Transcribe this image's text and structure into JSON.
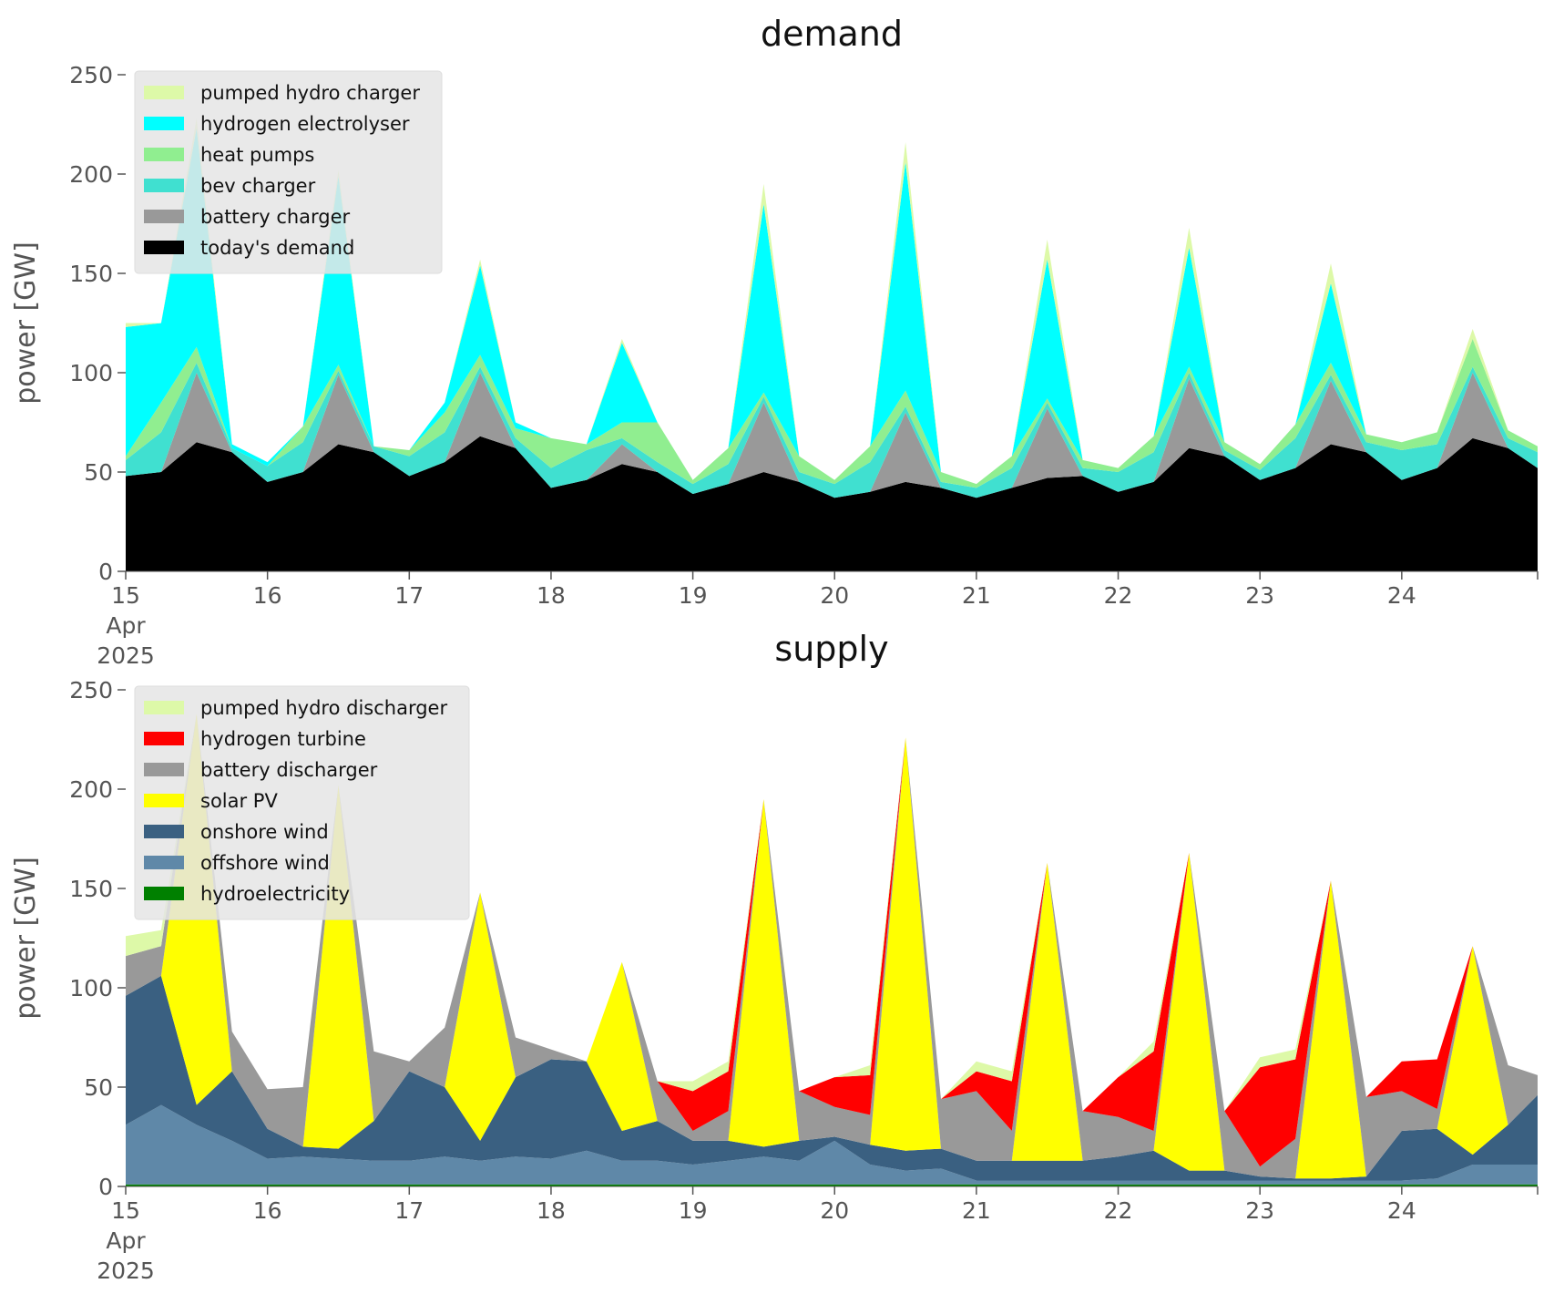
{
  "chart_data": [
    {
      "type": "area",
      "stacked": true,
      "title": "demand",
      "ylabel": "power [GW]",
      "ylim": [
        0,
        250
      ],
      "yticks": [
        0,
        50,
        100,
        150,
        200,
        250
      ],
      "xlim": [
        "2025-04-15",
        "2025-04-24T23:00"
      ],
      "xticks": [
        {
          "date": "2025-04-15",
          "lines": [
            "15",
            "Apr",
            "2025"
          ]
        },
        {
          "date": "2025-04-16",
          "lines": [
            "16"
          ]
        },
        {
          "date": "2025-04-17",
          "lines": [
            "17"
          ]
        },
        {
          "date": "2025-04-18",
          "lines": [
            "18"
          ]
        },
        {
          "date": "2025-04-19",
          "lines": [
            "19"
          ]
        },
        {
          "date": "2025-04-20",
          "lines": [
            "20"
          ]
        },
        {
          "date": "2025-04-21",
          "lines": [
            "21"
          ]
        },
        {
          "date": "2025-04-22",
          "lines": [
            "22"
          ]
        },
        {
          "date": "2025-04-23",
          "lines": [
            "23"
          ]
        },
        {
          "date": "2025-04-24",
          "lines": [
            "24"
          ]
        }
      ],
      "legend_position": "upper-left",
      "x": [
        "2025-04-15T00:00",
        "2025-04-15T06:00",
        "2025-04-15T12:00",
        "2025-04-15T18:00",
        "2025-04-16T00:00",
        "2025-04-16T06:00",
        "2025-04-16T12:00",
        "2025-04-16T18:00",
        "2025-04-17T00:00",
        "2025-04-17T06:00",
        "2025-04-17T12:00",
        "2025-04-17T18:00",
        "2025-04-18T00:00",
        "2025-04-18T06:00",
        "2025-04-18T12:00",
        "2025-04-18T18:00",
        "2025-04-19T00:00",
        "2025-04-19T06:00",
        "2025-04-19T12:00",
        "2025-04-19T18:00",
        "2025-04-20T00:00",
        "2025-04-20T06:00",
        "2025-04-20T12:00",
        "2025-04-20T18:00",
        "2025-04-21T00:00",
        "2025-04-21T06:00",
        "2025-04-21T12:00",
        "2025-04-21T18:00",
        "2025-04-22T00:00",
        "2025-04-22T06:00",
        "2025-04-22T12:00",
        "2025-04-22T18:00",
        "2025-04-23T00:00",
        "2025-04-23T06:00",
        "2025-04-23T12:00",
        "2025-04-23T18:00",
        "2025-04-24T00:00",
        "2025-04-24T06:00",
        "2025-04-24T12:00",
        "2025-04-24T18:00",
        "2025-04-24T23:00"
      ],
      "series": [
        {
          "name": "today's demand",
          "color": "#000000",
          "values": [
            48,
            50,
            65,
            60,
            45,
            50,
            64,
            60,
            48,
            55,
            68,
            62,
            42,
            46,
            54,
            50,
            39,
            44,
            50,
            45,
            37,
            40,
            45,
            42,
            37,
            42,
            47,
            48,
            40,
            45,
            62,
            58,
            46,
            52,
            64,
            60,
            46,
            52,
            67,
            62,
            52
          ]
        },
        {
          "name": "battery charger",
          "color": "#999999",
          "values": [
            0,
            0,
            35,
            0,
            0,
            0,
            35,
            0,
            0,
            0,
            32,
            0,
            0,
            0,
            10,
            0,
            0,
            0,
            35,
            0,
            0,
            0,
            35,
            0,
            0,
            0,
            35,
            0,
            0,
            0,
            35,
            0,
            0,
            0,
            32,
            0,
            0,
            0,
            33,
            0,
            0
          ]
        },
        {
          "name": "bev charger",
          "color": "#40E0D0",
          "values": [
            8,
            20,
            5,
            2,
            8,
            15,
            2,
            3,
            10,
            15,
            3,
            5,
            10,
            15,
            3,
            5,
            5,
            10,
            3,
            5,
            7,
            15,
            3,
            3,
            5,
            10,
            3,
            4,
            10,
            15,
            3,
            3,
            5,
            15,
            3,
            5,
            15,
            12,
            3,
            5,
            8
          ]
        },
        {
          "name": "heat pumps",
          "color": "#90EE90",
          "values": [
            2,
            15,
            8,
            0,
            0,
            8,
            3,
            0,
            3,
            10,
            6,
            5,
            15,
            3,
            8,
            20,
            2,
            8,
            2,
            8,
            2,
            8,
            8,
            5,
            2,
            6,
            2,
            4,
            2,
            8,
            3,
            4,
            3,
            7,
            6,
            4,
            4,
            6,
            14,
            4,
            3
          ]
        },
        {
          "name": "hydrogen electrolyser",
          "color": "#00FFFF",
          "values": [
            65,
            40,
            110,
            2,
            2,
            0,
            95,
            0,
            0,
            5,
            45,
            3,
            0,
            0,
            40,
            0,
            0,
            0,
            95,
            0,
            0,
            0,
            115,
            0,
            0,
            0,
            70,
            0,
            0,
            0,
            60,
            0,
            0,
            0,
            40,
            0,
            0,
            0,
            0,
            0,
            0
          ]
        },
        {
          "name": "pumped hydro charger",
          "color": "#DDF9A8",
          "values": [
            2,
            0,
            5,
            0,
            0,
            0,
            3,
            0,
            0,
            0,
            3,
            0,
            0,
            0,
            2,
            0,
            0,
            0,
            10,
            0,
            0,
            0,
            10,
            0,
            0,
            0,
            10,
            0,
            0,
            0,
            10,
            0,
            0,
            0,
            10,
            0,
            0,
            0,
            5,
            0,
            0
          ]
        }
      ]
    },
    {
      "type": "area",
      "stacked": true,
      "title": "supply",
      "ylabel": "power [GW]",
      "ylim": [
        0,
        250
      ],
      "yticks": [
        0,
        50,
        100,
        150,
        200,
        250
      ],
      "xlim": [
        "2025-04-15",
        "2025-04-24T23:00"
      ],
      "xticks": [
        {
          "date": "2025-04-15",
          "lines": [
            "15",
            "Apr",
            "2025"
          ]
        },
        {
          "date": "2025-04-16",
          "lines": [
            "16"
          ]
        },
        {
          "date": "2025-04-17",
          "lines": [
            "17"
          ]
        },
        {
          "date": "2025-04-18",
          "lines": [
            "18"
          ]
        },
        {
          "date": "2025-04-19",
          "lines": [
            "19"
          ]
        },
        {
          "date": "2025-04-20",
          "lines": [
            "20"
          ]
        },
        {
          "date": "2025-04-21",
          "lines": [
            "21"
          ]
        },
        {
          "date": "2025-04-22",
          "lines": [
            "22"
          ]
        },
        {
          "date": "2025-04-23",
          "lines": [
            "23"
          ]
        },
        {
          "date": "2025-04-24",
          "lines": [
            "24"
          ]
        }
      ],
      "legend_position": "upper-left",
      "x": [
        "2025-04-15T00:00",
        "2025-04-15T06:00",
        "2025-04-15T12:00",
        "2025-04-15T18:00",
        "2025-04-16T00:00",
        "2025-04-16T06:00",
        "2025-04-16T12:00",
        "2025-04-16T18:00",
        "2025-04-17T00:00",
        "2025-04-17T06:00",
        "2025-04-17T12:00",
        "2025-04-17T18:00",
        "2025-04-18T00:00",
        "2025-04-18T06:00",
        "2025-04-18T12:00",
        "2025-04-18T18:00",
        "2025-04-19T00:00",
        "2025-04-19T06:00",
        "2025-04-19T12:00",
        "2025-04-19T18:00",
        "2025-04-20T00:00",
        "2025-04-20T06:00",
        "2025-04-20T12:00",
        "2025-04-20T18:00",
        "2025-04-21T00:00",
        "2025-04-21T06:00",
        "2025-04-21T12:00",
        "2025-04-21T18:00",
        "2025-04-22T00:00",
        "2025-04-22T06:00",
        "2025-04-22T12:00",
        "2025-04-22T18:00",
        "2025-04-23T00:00",
        "2025-04-23T06:00",
        "2025-04-23T12:00",
        "2025-04-23T18:00",
        "2025-04-24T00:00",
        "2025-04-24T06:00",
        "2025-04-24T12:00",
        "2025-04-24T18:00",
        "2025-04-24T23:00"
      ],
      "series": [
        {
          "name": "hydroelectricity",
          "color": "#008000",
          "values": [
            1,
            1,
            1,
            1,
            1,
            1,
            1,
            1,
            1,
            1,
            1,
            1,
            1,
            1,
            1,
            1,
            1,
            1,
            1,
            1,
            1,
            1,
            1,
            1,
            1,
            1,
            1,
            1,
            1,
            1,
            1,
            1,
            1,
            1,
            1,
            1,
            1,
            1,
            1,
            1,
            1
          ]
        },
        {
          "name": "offshore wind",
          "color": "#5F88A8",
          "values": [
            30,
            40,
            30,
            22,
            13,
            14,
            13,
            12,
            12,
            14,
            12,
            14,
            13,
            17,
            12,
            12,
            10,
            12,
            14,
            12,
            22,
            10,
            7,
            8,
            2,
            2,
            2,
            2,
            2,
            2,
            2,
            2,
            2,
            2,
            2,
            2,
            2,
            3,
            10,
            10,
            10
          ]
        },
        {
          "name": "onshore wind",
          "color": "#3A6081",
          "values": [
            65,
            65,
            10,
            35,
            15,
            5,
            5,
            20,
            45,
            35,
            10,
            40,
            50,
            45,
            15,
            20,
            12,
            10,
            5,
            10,
            2,
            10,
            10,
            10,
            10,
            10,
            10,
            10,
            12,
            15,
            5,
            5,
            2,
            1,
            1,
            2,
            25,
            25,
            5,
            20,
            35
          ]
        },
        {
          "name": "solar PV",
          "color": "#FFFF00",
          "values": [
            0,
            0,
            197,
            0,
            0,
            0,
            183,
            0,
            0,
            0,
            125,
            0,
            0,
            0,
            85,
            0,
            0,
            0,
            175,
            0,
            0,
            0,
            208,
            0,
            0,
            0,
            150,
            0,
            0,
            0,
            160,
            0,
            0,
            0,
            150,
            0,
            0,
            0,
            105,
            0,
            0
          ]
        },
        {
          "name": "battery discharger",
          "color": "#999999",
          "values": [
            20,
            15,
            0,
            20,
            20,
            30,
            0,
            35,
            5,
            30,
            0,
            20,
            5,
            0,
            0,
            20,
            5,
            15,
            0,
            25,
            15,
            15,
            0,
            25,
            35,
            15,
            0,
            25,
            20,
            10,
            0,
            30,
            5,
            20,
            0,
            40,
            20,
            10,
            0,
            30,
            10
          ]
        },
        {
          "name": "hydrogen turbine",
          "color": "#FF0000",
          "values": [
            0,
            0,
            0,
            0,
            0,
            0,
            0,
            0,
            0,
            0,
            0,
            0,
            0,
            0,
            0,
            0,
            20,
            20,
            0,
            0,
            15,
            20,
            0,
            0,
            10,
            25,
            0,
            0,
            20,
            40,
            0,
            0,
            50,
            40,
            0,
            0,
            15,
            25,
            0,
            0,
            0
          ]
        },
        {
          "name": "pumped hydro discharger",
          "color": "#DDF9A8",
          "values": [
            10,
            8,
            0,
            0,
            0,
            0,
            0,
            0,
            0,
            0,
            0,
            0,
            0,
            0,
            0,
            0,
            5,
            5,
            0,
            0,
            0,
            5,
            0,
            0,
            5,
            5,
            0,
            0,
            0,
            5,
            0,
            0,
            5,
            5,
            0,
            0,
            0,
            0,
            0,
            0,
            0
          ]
        }
      ]
    }
  ]
}
